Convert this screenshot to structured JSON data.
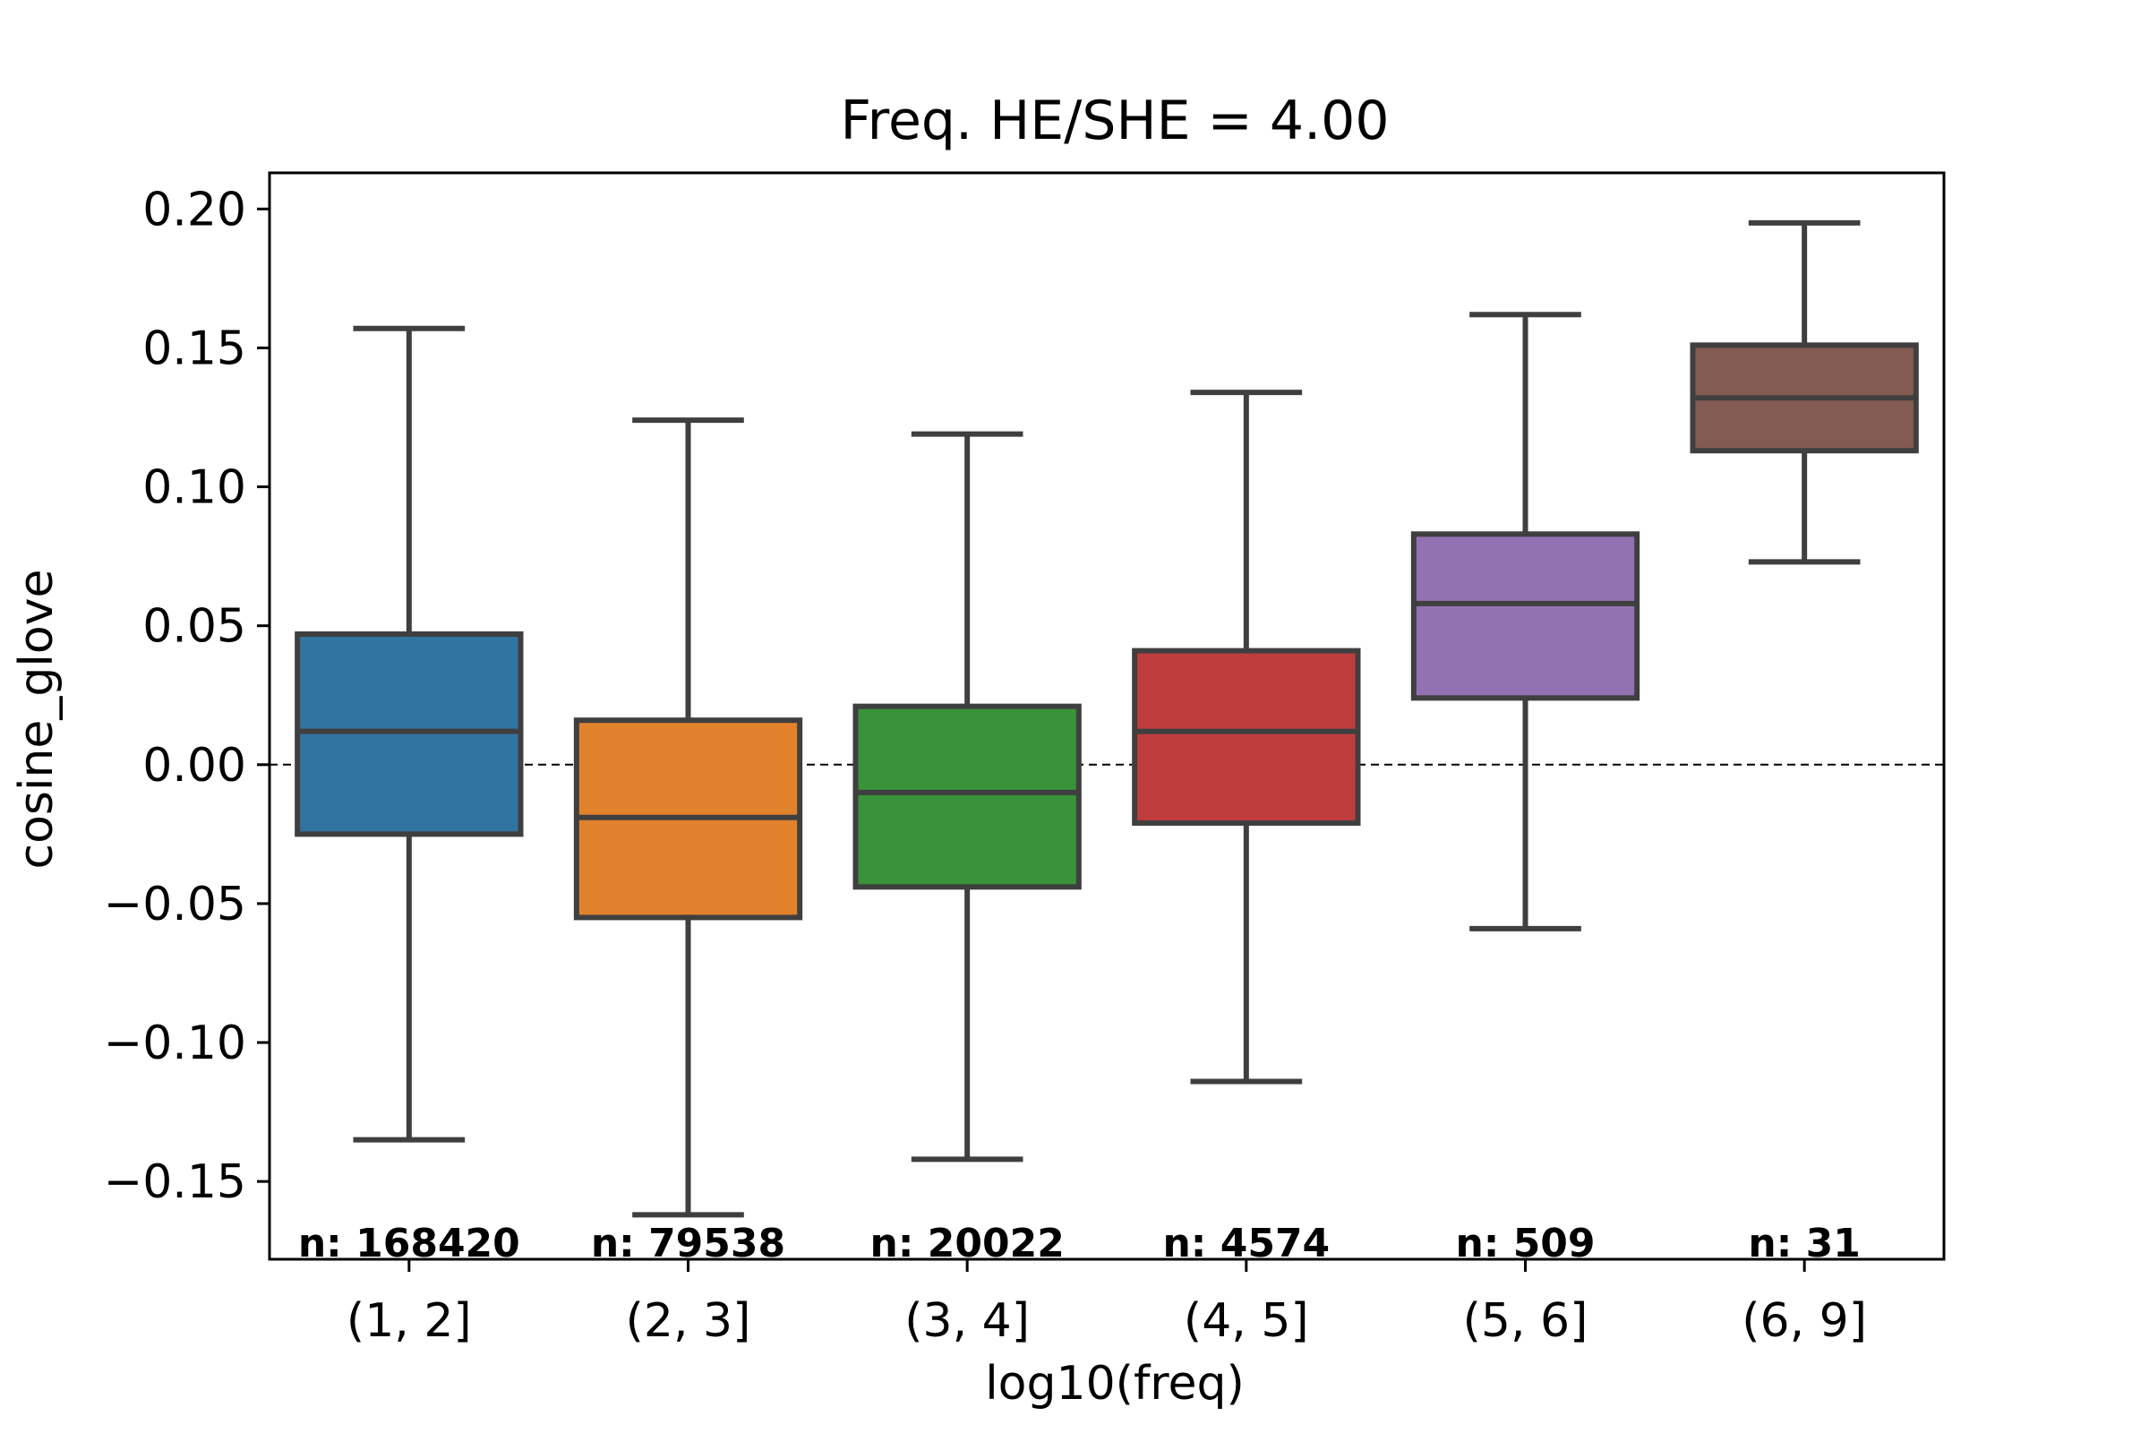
{
  "chart_data": {
    "type": "box",
    "title": "Freq. HE/SHE = 4.00",
    "xlabel": "log10(freq)",
    "ylabel": "cosine_glove",
    "ylim": [
      -0.178,
      0.213
    ],
    "yticks": [
      0.2,
      0.15,
      0.1,
      0.05,
      0.0,
      -0.05,
      -0.1,
      -0.15
    ],
    "ytick_labels": [
      "0.20",
      "0.15",
      "0.10",
      "0.05",
      "0.00",
      "−0.05",
      "−0.10",
      "−0.15"
    ],
    "reference_line": 0.0,
    "grid": false,
    "categories": [
      "(1, 2]",
      "(2, 3]",
      "(3, 4]",
      "(4, 5]",
      "(5, 6]",
      "(6, 9]"
    ],
    "boxes": [
      {
        "category": "(1, 2]",
        "whisker_low": -0.135,
        "q1": -0.025,
        "median": 0.012,
        "q3": 0.047,
        "whisker_high": 0.157,
        "n_label": "n: 168420",
        "color": "#3274a1"
      },
      {
        "category": "(2, 3]",
        "whisker_low": -0.162,
        "q1": -0.055,
        "median": -0.019,
        "q3": 0.016,
        "whisker_high": 0.124,
        "n_label": "n: 79538",
        "color": "#e1812c"
      },
      {
        "category": "(3, 4]",
        "whisker_low": -0.142,
        "q1": -0.044,
        "median": -0.01,
        "q3": 0.021,
        "whisker_high": 0.119,
        "n_label": "n: 20022",
        "color": "#3a923a"
      },
      {
        "category": "(4, 5]",
        "whisker_low": -0.114,
        "q1": -0.021,
        "median": 0.012,
        "q3": 0.041,
        "whisker_high": 0.134,
        "n_label": "n: 4574",
        "color": "#c03d3e"
      },
      {
        "category": "(5, 6]",
        "whisker_low": -0.059,
        "q1": 0.024,
        "median": 0.058,
        "q3": 0.083,
        "whisker_high": 0.162,
        "n_label": "n: 509",
        "color": "#9372b2"
      },
      {
        "category": "(6, 9]",
        "whisker_low": 0.073,
        "q1": 0.113,
        "median": 0.132,
        "q3": 0.151,
        "whisker_high": 0.195,
        "n_label": "n: 31",
        "color": "#845b53"
      }
    ]
  }
}
